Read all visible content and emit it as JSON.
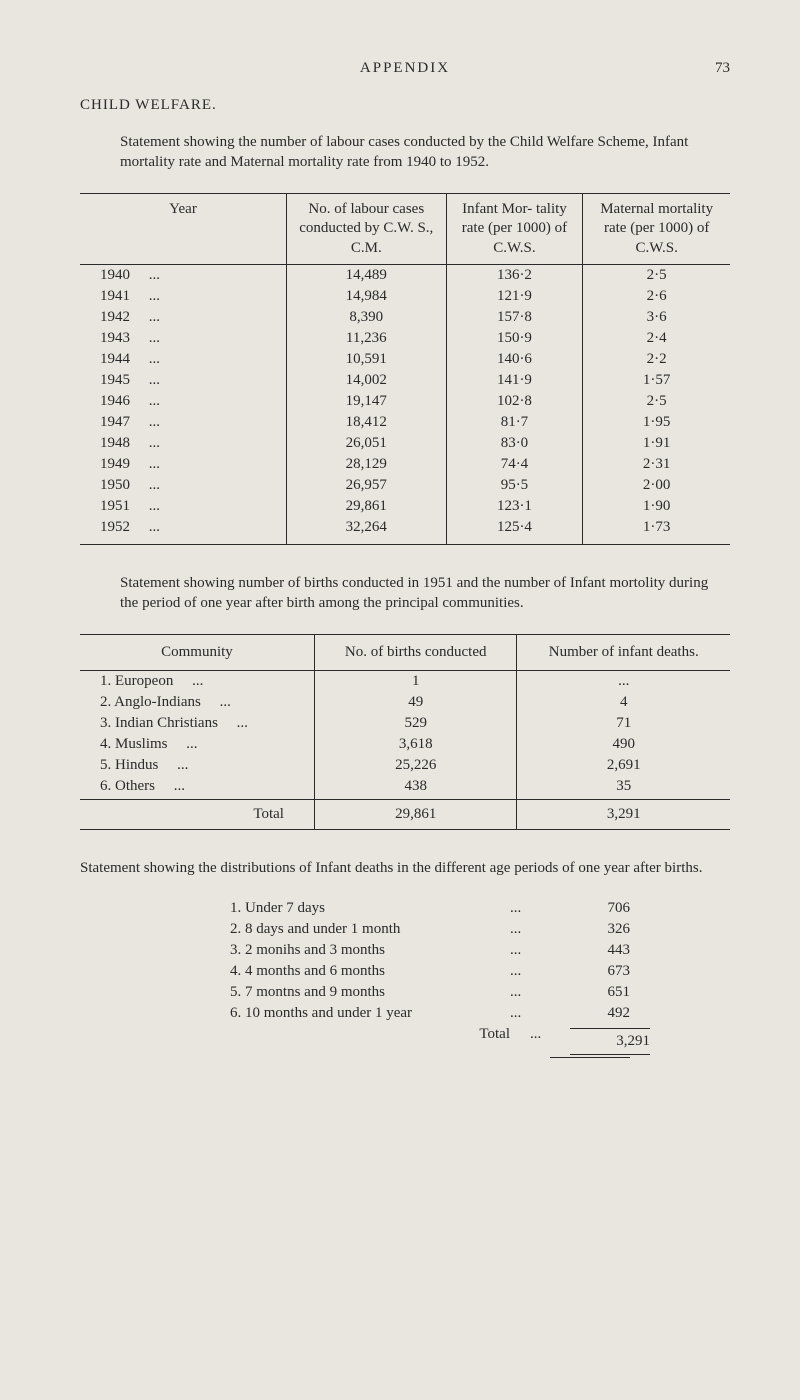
{
  "page": {
    "header_title": "APPENDIX",
    "page_number": "73",
    "section": "CHILD WELFARE.",
    "statement1": "Statement showing the number of labour cases conducted by the Child Welfare Scheme, Infant mortality rate and Maternal mortality rate from 1940 to 1952.",
    "statement2": "Statement showing number of births conducted in 1951 and the number of Infant mortolity during the period of one year after birth among the principal communities.",
    "statement3": "Statement showing the distributions of Infant deaths in the different age periods of one year after births."
  },
  "table1": {
    "headers": {
      "year": "Year",
      "labour": "No. of labour cases conducted by C.W. S., C.M.",
      "infant": "Infant Mor- tality rate (per 1000) of C.W.S.",
      "maternal": "Maternal mortality rate (per 1000) of C.W.S."
    },
    "rows": [
      {
        "year": "1940",
        "labour": "14,489",
        "infant": "136·2",
        "maternal": "2·5"
      },
      {
        "year": "1941",
        "labour": "14,984",
        "infant": "121·9",
        "maternal": "2·6"
      },
      {
        "year": "1942",
        "labour": "8,390",
        "infant": "157·8",
        "maternal": "3·6"
      },
      {
        "year": "1943",
        "labour": "11,236",
        "infant": "150·9",
        "maternal": "2·4"
      },
      {
        "year": "1944",
        "labour": "10,591",
        "infant": "140·6",
        "maternal": "2·2"
      },
      {
        "year": "1945",
        "labour": "14,002",
        "infant": "141·9",
        "maternal": "1·57"
      },
      {
        "year": "1946",
        "labour": "19,147",
        "infant": "102·8",
        "maternal": "2·5"
      },
      {
        "year": "1947",
        "labour": "18,412",
        "infant": "81·7",
        "maternal": "1·95"
      },
      {
        "year": "1948",
        "labour": "26,051",
        "infant": "83·0",
        "maternal": "1·91"
      },
      {
        "year": "1949",
        "labour": "28,129",
        "infant": "74·4",
        "maternal": "2·31"
      },
      {
        "year": "1950",
        "labour": "26,957",
        "infant": "95·5",
        "maternal": "2·00"
      },
      {
        "year": "1951",
        "labour": "29,861",
        "infant": "123·1",
        "maternal": "1·90"
      },
      {
        "year": "1952",
        "labour": "32,264",
        "infant": "125·4",
        "maternal": "1·73"
      }
    ]
  },
  "table2": {
    "headers": {
      "community": "Community",
      "births": "No. of births conducted",
      "deaths": "Number of infant deaths."
    },
    "rows": [
      {
        "idx": "1.",
        "name": "Europeon",
        "births": "1",
        "deaths": "..."
      },
      {
        "idx": "2.",
        "name": "Anglo-Indians",
        "births": "49",
        "deaths": "4"
      },
      {
        "idx": "3.",
        "name": "Indian Christians",
        "births": "529",
        "deaths": "71"
      },
      {
        "idx": "4.",
        "name": "Muslims",
        "births": "3,618",
        "deaths": "490"
      },
      {
        "idx": "5.",
        "name": "Hindus",
        "births": "25,226",
        "deaths": "2,691"
      },
      {
        "idx": "6.",
        "name": "Others",
        "births": "438",
        "deaths": "35"
      }
    ],
    "total": {
      "label": "Total",
      "births": "29,861",
      "deaths": "3,291"
    }
  },
  "age_list": {
    "rows": [
      {
        "idx": "1.",
        "label": "Under 7 days",
        "val": "706"
      },
      {
        "idx": "2.",
        "label": "8 days and under 1 month",
        "val": "326"
      },
      {
        "idx": "3.",
        "label": "2 monihs and 3 months",
        "val": "443"
      },
      {
        "idx": "4.",
        "label": "4 months and 6 months",
        "val": "673"
      },
      {
        "idx": "5.",
        "label": "7 montns and 9 months",
        "val": "651"
      },
      {
        "idx": "6.",
        "label": "10 months and under 1 year",
        "val": "492"
      }
    ],
    "total": {
      "label": "Total",
      "val": "3,291"
    }
  }
}
